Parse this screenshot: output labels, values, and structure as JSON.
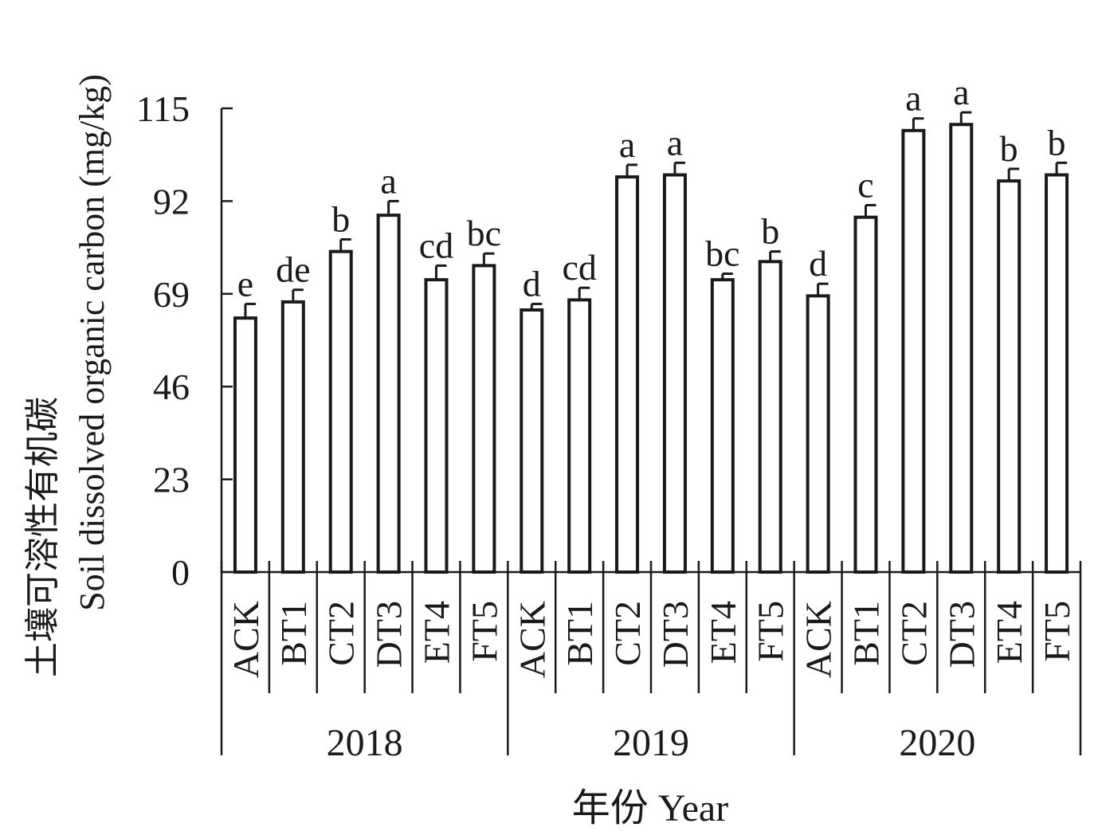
{
  "chart_data": {
    "type": "bar",
    "ylabel_cn": "土壤可溶性有机碳",
    "ylabel_en": "Soil dissolved organic carbon (mg/kg)",
    "xlabel": "年份 Year",
    "ylim": [
      0,
      115
    ],
    "yticks": [
      0,
      23,
      46,
      69,
      92,
      115
    ],
    "groups": [
      {
        "name": "2018",
        "categories": [
          "ACK",
          "BT1",
          "CT2",
          "DT3",
          "ET4",
          "FT5"
        ],
        "values": [
          63,
          67,
          79.5,
          88.5,
          72.5,
          76
        ],
        "errors": [
          3.5,
          3,
          3,
          3.5,
          3.5,
          3
        ],
        "letters": [
          "e",
          "de",
          "b",
          "a",
          "cd",
          "bc"
        ]
      },
      {
        "name": "2019",
        "categories": [
          "ACK",
          "BT1",
          "CT2",
          "DT3",
          "ET4",
          "FT5"
        ],
        "values": [
          65,
          67.5,
          98,
          98.5,
          72.5,
          77
        ],
        "errors": [
          1.5,
          3,
          3,
          3,
          1.5,
          2.5
        ],
        "letters": [
          "d",
          "cd",
          "a",
          "a",
          "bc",
          "b"
        ]
      },
      {
        "name": "2020",
        "categories": [
          "ACK",
          "BT1",
          "CT2",
          "DT3",
          "ET4",
          "FT5"
        ],
        "values": [
          68.5,
          88,
          109.5,
          111,
          97,
          98.5
        ],
        "errors": [
          3,
          3,
          3,
          3,
          3,
          3
        ],
        "letters": [
          "d",
          "c",
          "a",
          "a",
          "b",
          "b"
        ]
      }
    ]
  }
}
